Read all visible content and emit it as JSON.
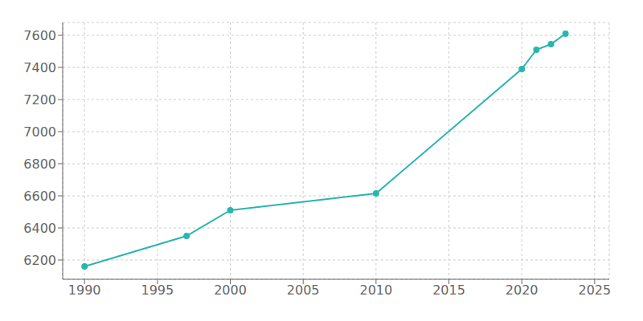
{
  "chart_data": {
    "type": "line",
    "x": [
      1990,
      1997,
      2000,
      2010,
      2020,
      2021,
      2022,
      2023
    ],
    "values": [
      6160,
      6350,
      6510,
      6615,
      7390,
      7510,
      7545,
      7610
    ],
    "color": "#2ab5b0",
    "marker": "circle",
    "xlim": [
      1988.5,
      2026
    ],
    "ylim": [
      6080,
      7680
    ],
    "xticks": [
      1990,
      1995,
      2000,
      2005,
      2010,
      2015,
      2020,
      2025
    ],
    "yticks": [
      6200,
      6400,
      6600,
      6800,
      7000,
      7200,
      7400,
      7600
    ],
    "grid": true
  }
}
